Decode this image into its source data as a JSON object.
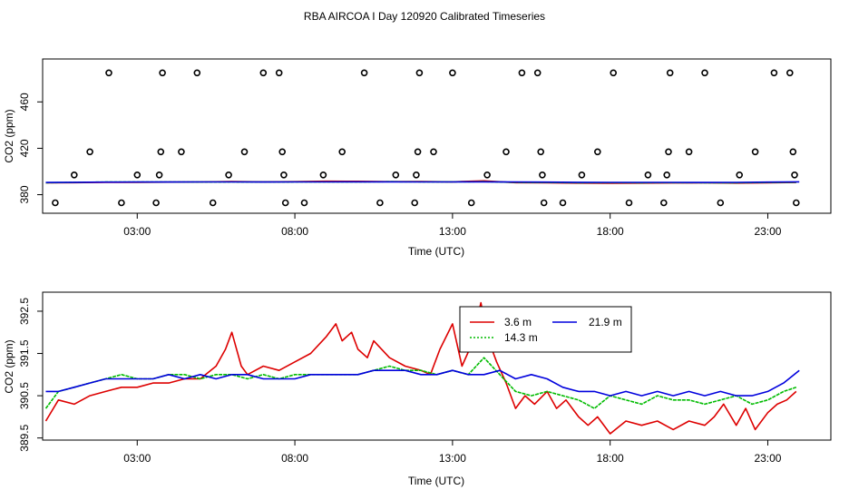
{
  "title": "RBA AIRCOA I  Day 120920  Calibrated Timeseries",
  "colors": {
    "s36": "#dd0000",
    "s143": "#00bb00",
    "s219": "#0000dd",
    "axis": "#000000",
    "bg": "#ffffff"
  },
  "chart_data": [
    {
      "type": "scatter",
      "xlabel": "Time (UTC)",
      "ylabel": "CO2 (ppm)",
      "xlim": [
        0.0,
        25.0
      ],
      "ylim": [
        364.0,
        497.0
      ],
      "xticks": [
        3,
        8,
        13,
        18,
        23
      ],
      "xtick_labels": [
        "03:00",
        "08:00",
        "13:00",
        "18:00",
        "23:00"
      ],
      "yticks": [
        380,
        420,
        460
      ],
      "ytick_labels": [
        "380",
        "420",
        "460"
      ],
      "outlier_points": {
        "x": [
          0.4,
          1.0,
          1.5,
          2.1,
          2.5,
          3.0,
          3.6,
          3.7,
          3.75,
          3.8,
          4.4,
          4.9,
          5.4,
          5.9,
          6.4,
          7.0,
          7.5,
          7.6,
          7.65,
          7.7,
          8.3,
          8.9,
          9.5,
          10.2,
          10.7,
          11.2,
          11.8,
          11.85,
          11.9,
          11.95,
          12.4,
          13.0,
          13.6,
          14.1,
          14.7,
          15.2,
          15.7,
          15.8,
          15.85,
          15.9,
          16.5,
          17.1,
          17.6,
          18.1,
          18.6,
          19.2,
          19.7,
          19.8,
          19.85,
          19.9,
          20.5,
          21.0,
          21.5,
          22.1,
          22.6,
          23.2,
          23.7,
          23.8,
          23.85,
          23.9
        ],
        "y": [
          373,
          397,
          417,
          485,
          373,
          397,
          373,
          397,
          417,
          485,
          417,
          485,
          373,
          397,
          417,
          485,
          485,
          417,
          397,
          373,
          373,
          397,
          417,
          485,
          373,
          397,
          373,
          397,
          417,
          485,
          417,
          485,
          373,
          397,
          417,
          485,
          485,
          417,
          397,
          373,
          373,
          397,
          417,
          485,
          373,
          397,
          373,
          397,
          417,
          485,
          417,
          485,
          373,
          397,
          417,
          485,
          485,
          417,
          397,
          373
        ]
      },
      "series": [
        {
          "name": "3.6 m",
          "color": "#dd0000",
          "x": [
            0.1,
            1.0,
            2.0,
            3.0,
            4.0,
            5.0,
            6.0,
            7.0,
            8.0,
            9.0,
            10.0,
            11.0,
            12.0,
            13.0,
            14.0,
            15.0,
            16.0,
            17.0,
            18.0,
            19.0,
            20.0,
            21.0,
            22.0,
            23.0,
            23.9
          ],
          "values": [
            390.2,
            390.4,
            390.6,
            390.7,
            390.8,
            391.0,
            391.4,
            391.1,
            391.2,
            391.6,
            391.5,
            391.2,
            391.3,
            391.1,
            391.9,
            390.4,
            390.2,
            390.0,
            389.9,
            390.0,
            390.1,
            390.2,
            390.0,
            390.2,
            390.5
          ]
        },
        {
          "name": "14.3 m",
          "color": "#00bb00",
          "x": [
            0.1,
            1.0,
            2.0,
            3.0,
            4.0,
            5.0,
            6.0,
            7.0,
            8.0,
            9.0,
            10.0,
            11.0,
            12.0,
            13.0,
            14.0,
            15.0,
            16.0,
            17.0,
            18.0,
            19.0,
            20.0,
            21.0,
            22.0,
            23.0,
            23.9
          ],
          "values": [
            390.3,
            390.6,
            390.9,
            390.9,
            391.0,
            390.9,
            391.0,
            390.9,
            391.0,
            391.0,
            391.0,
            391.2,
            391.1,
            391.1,
            391.2,
            390.6,
            390.5,
            390.3,
            390.4,
            390.3,
            390.4,
            390.3,
            390.3,
            390.5,
            390.7
          ]
        },
        {
          "name": "21.9 m",
          "color": "#0000dd",
          "x": [
            0.1,
            1.0,
            2.0,
            3.0,
            4.0,
            5.0,
            6.0,
            7.0,
            8.0,
            9.0,
            10.0,
            11.0,
            12.0,
            13.0,
            14.0,
            15.0,
            16.0,
            17.0,
            18.0,
            19.0,
            20.0,
            21.0,
            22.0,
            23.0,
            24.0
          ],
          "values": [
            390.5,
            390.7,
            390.8,
            390.9,
            390.9,
            391.0,
            391.0,
            390.9,
            391.0,
            391.0,
            391.1,
            391.1,
            391.0,
            391.0,
            391.1,
            390.9,
            390.8,
            390.7,
            390.6,
            390.6,
            390.6,
            390.5,
            390.6,
            390.8,
            391.1
          ]
        }
      ]
    },
    {
      "type": "line",
      "xlabel": "Time (UTC)",
      "ylabel": "CO2 (ppm)",
      "xlim": [
        0.0,
        25.0
      ],
      "ylim": [
        389.45,
        392.95
      ],
      "xticks": [
        3,
        8,
        13,
        18,
        23
      ],
      "xtick_labels": [
        "03:00",
        "08:00",
        "13:00",
        "18:00",
        "23:00"
      ],
      "yticks": [
        389.5,
        390.5,
        391.5,
        392.5
      ],
      "ytick_labels": [
        "389.5",
        "390.5",
        "391.5",
        "392.5"
      ],
      "legend": {
        "entries": [
          "3.6 m",
          "14.3 m",
          "21.9 m"
        ]
      },
      "series": [
        {
          "name": "3.6 m",
          "color": "#dd0000",
          "x": [
            0.1,
            0.5,
            1.0,
            1.5,
            2.0,
            2.5,
            3.0,
            3.5,
            4.0,
            4.5,
            5.0,
            5.5,
            5.8,
            6.0,
            6.3,
            6.5,
            7.0,
            7.5,
            8.0,
            8.5,
            9.0,
            9.3,
            9.5,
            9.8,
            10.0,
            10.3,
            10.5,
            11.0,
            11.5,
            12.0,
            12.3,
            12.6,
            13.0,
            13.3,
            13.6,
            13.9,
            14.1,
            14.4,
            14.7,
            15.0,
            15.3,
            15.6,
            16.0,
            16.3,
            16.6,
            17.0,
            17.3,
            17.6,
            18.0,
            18.5,
            19.0,
            19.5,
            20.0,
            20.5,
            21.0,
            21.3,
            21.6,
            22.0,
            22.3,
            22.6,
            23.0,
            23.3,
            23.6,
            23.9
          ],
          "values": [
            389.9,
            390.4,
            390.3,
            390.5,
            390.6,
            390.7,
            390.7,
            390.8,
            390.8,
            390.9,
            390.9,
            391.2,
            391.6,
            392.0,
            391.2,
            391.0,
            391.2,
            391.1,
            391.3,
            391.5,
            391.9,
            392.2,
            391.8,
            392.0,
            391.6,
            391.4,
            391.8,
            391.4,
            391.2,
            391.1,
            391.0,
            391.6,
            392.2,
            391.2,
            391.7,
            392.7,
            391.9,
            391.3,
            390.8,
            390.2,
            390.5,
            390.3,
            390.6,
            390.2,
            390.4,
            390.0,
            389.8,
            390.0,
            389.6,
            389.9,
            389.8,
            389.9,
            389.7,
            389.9,
            389.8,
            390.0,
            390.3,
            389.8,
            390.2,
            389.7,
            390.1,
            390.3,
            390.4,
            390.6
          ]
        },
        {
          "name": "14.3 m",
          "color": "#00bb00",
          "x": [
            0.1,
            0.5,
            1.0,
            1.5,
            2.0,
            2.5,
            3.0,
            3.5,
            4.0,
            4.5,
            5.0,
            5.5,
            6.0,
            6.5,
            7.0,
            7.5,
            8.0,
            8.5,
            9.0,
            9.5,
            10.0,
            10.5,
            11.0,
            11.5,
            12.0,
            12.5,
            13.0,
            13.5,
            14.0,
            14.5,
            15.0,
            15.5,
            16.0,
            16.5,
            17.0,
            17.5,
            18.0,
            18.5,
            19.0,
            19.5,
            20.0,
            20.5,
            21.0,
            21.5,
            22.0,
            22.5,
            23.0,
            23.5,
            23.9
          ],
          "values": [
            390.2,
            390.6,
            390.7,
            390.8,
            390.9,
            391.0,
            390.9,
            390.9,
            391.0,
            391.0,
            390.9,
            391.0,
            391.0,
            390.9,
            391.0,
            390.9,
            391.0,
            391.0,
            391.0,
            391.0,
            391.0,
            391.1,
            391.2,
            391.1,
            391.1,
            391.0,
            391.1,
            391.0,
            391.4,
            391.0,
            390.6,
            390.5,
            390.6,
            390.5,
            390.4,
            390.2,
            390.5,
            390.4,
            390.3,
            390.5,
            390.4,
            390.4,
            390.3,
            390.4,
            390.5,
            390.3,
            390.4,
            390.6,
            390.7
          ]
        },
        {
          "name": "21.9 m",
          "color": "#0000dd",
          "x": [
            0.1,
            0.5,
            1.0,
            1.5,
            2.0,
            2.5,
            3.0,
            3.5,
            4.0,
            4.5,
            5.0,
            5.5,
            6.0,
            6.5,
            7.0,
            7.5,
            8.0,
            8.5,
            9.0,
            9.5,
            10.0,
            10.5,
            11.0,
            11.5,
            12.0,
            12.5,
            13.0,
            13.5,
            14.0,
            14.5,
            15.0,
            15.5,
            16.0,
            16.5,
            17.0,
            17.5,
            18.0,
            18.5,
            19.0,
            19.5,
            20.0,
            20.5,
            21.0,
            21.5,
            22.0,
            22.5,
            23.0,
            23.5,
            24.0
          ],
          "values": [
            390.6,
            390.6,
            390.7,
            390.8,
            390.9,
            390.9,
            390.9,
            390.9,
            391.0,
            390.9,
            391.0,
            390.9,
            391.0,
            391.0,
            390.9,
            390.9,
            390.9,
            391.0,
            391.0,
            391.0,
            391.0,
            391.1,
            391.1,
            391.1,
            391.0,
            391.0,
            391.1,
            391.0,
            391.0,
            391.1,
            390.9,
            391.0,
            390.9,
            390.7,
            390.6,
            390.6,
            390.5,
            390.6,
            390.5,
            390.6,
            390.5,
            390.6,
            390.5,
            390.6,
            390.5,
            390.5,
            390.6,
            390.8,
            391.1
          ]
        }
      ]
    }
  ]
}
